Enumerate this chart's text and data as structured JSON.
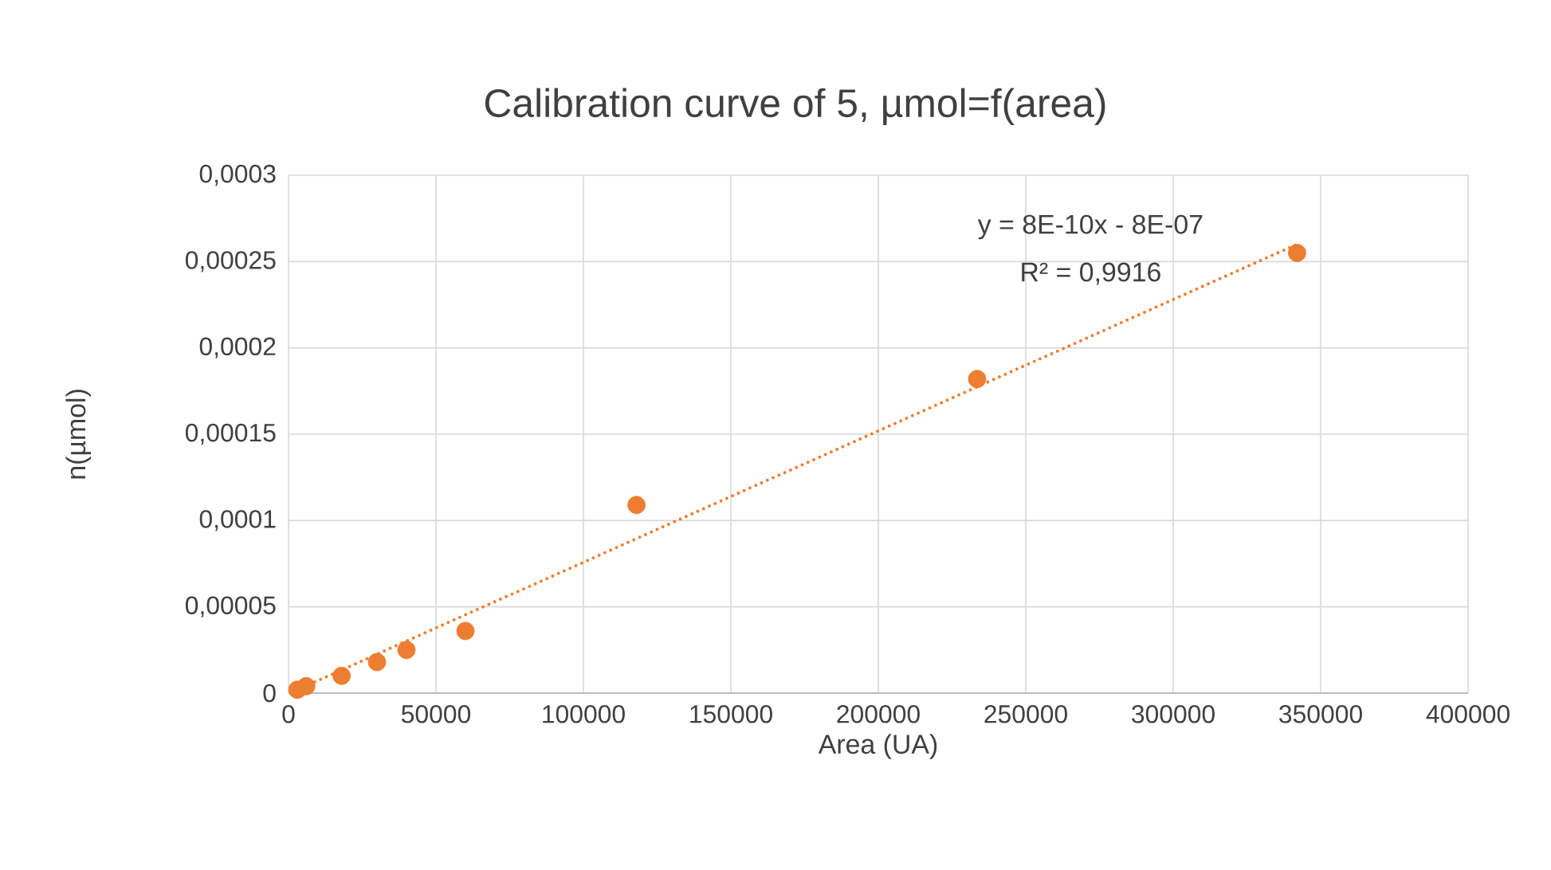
{
  "chart_data": {
    "type": "scatter",
    "title": "Calibration curve of 5, µmol=f(area)",
    "xlabel": "Area (UA)",
    "ylabel": "n(µmol)",
    "xlim": [
      0,
      400000
    ],
    "xticks": [
      0,
      50000,
      100000,
      150000,
      200000,
      250000,
      300000,
      350000,
      400000
    ],
    "ylim": [
      0,
      0.0003
    ],
    "yticks": [
      {
        "value": 0,
        "label": "0"
      },
      {
        "value": 5e-05,
        "label": "0,00005"
      },
      {
        "value": 0.0001,
        "label": "0,0001"
      },
      {
        "value": 0.00015,
        "label": "0,00015"
      },
      {
        "value": 0.0002,
        "label": "0,0002"
      },
      {
        "value": 0.00025,
        "label": "0,00025"
      },
      {
        "value": 0.0003,
        "label": "0,0003"
      }
    ],
    "grid": true,
    "marker": "circle",
    "series": [
      {
        "color": "#ed7d31",
        "x": [
          3000,
          6000,
          18000,
          30000,
          40000,
          60000,
          118000,
          233500,
          342000
        ],
        "values": [
          2e-06,
          4e-06,
          1e-05,
          1.8e-05,
          2.5e-05,
          3.6e-05,
          0.000109,
          0.000182,
          0.000255
        ]
      },
      {
        "type": "line",
        "color": "#ed7d31",
        "line_style": "dotted",
        "marker": "none",
        "x": [
          3000,
          342000
        ],
        "values": [
          2e-06,
          0.00026
        ]
      }
    ],
    "annotations": [
      "y = 8E-10x - 8E-07",
      "R² = 0,9916"
    ]
  }
}
